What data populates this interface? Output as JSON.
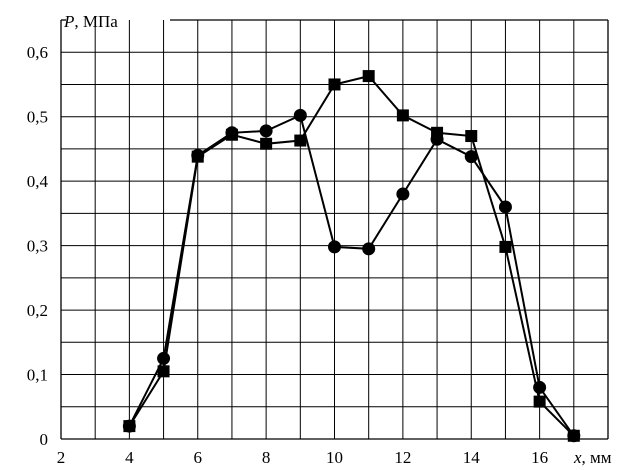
{
  "chart_data": {
    "type": "line",
    "title": "",
    "xlabel": {
      "symbol": "x",
      "unit": ", мм"
    },
    "ylabel": {
      "symbol": "P",
      "unit": ",  МПа"
    },
    "xlim": [
      2,
      18
    ],
    "ylim": [
      0,
      0.65
    ],
    "grid": true,
    "x_ticks": [
      2,
      4,
      6,
      8,
      10,
      12,
      14,
      16
    ],
    "x_tick_labels": [
      "2",
      "4",
      "6",
      "8",
      "10",
      "12",
      "14",
      "16"
    ],
    "y_ticks": [
      0,
      0.1,
      0.2,
      0.3,
      0.4,
      0.5,
      0.6
    ],
    "y_tick_labels": [
      "0",
      "0,1",
      "0,2",
      "0,3",
      "0,4",
      "0,5",
      "0,6"
    ],
    "series": [
      {
        "marker": "circle",
        "color": "#000000",
        "x": [
          4,
          5,
          6,
          7,
          8,
          9,
          10,
          11,
          12,
          13,
          14,
          15,
          16,
          17
        ],
        "y": [
          0.02,
          0.125,
          0.44,
          0.475,
          0.478,
          0.502,
          0.298,
          0.295,
          0.38,
          0.465,
          0.438,
          0.36,
          0.08,
          0.005
        ]
      },
      {
        "marker": "square",
        "color": "#000000",
        "x": [
          4,
          5,
          6,
          7,
          8,
          9,
          10,
          11,
          12,
          13,
          14,
          15,
          16,
          17
        ],
        "y": [
          0.02,
          0.105,
          0.438,
          0.472,
          0.458,
          0.463,
          0.55,
          0.563,
          0.502,
          0.475,
          0.47,
          0.298,
          0.058,
          0.005
        ]
      }
    ]
  }
}
